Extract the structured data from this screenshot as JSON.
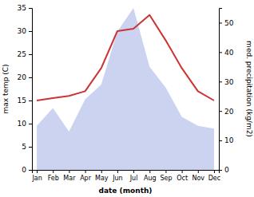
{
  "chart_data": {
    "type": "line",
    "categories": [
      "Jan",
      "Feb",
      "Mar",
      "Apr",
      "May",
      "Jun",
      "Jul",
      "Aug",
      "Sep",
      "Oct",
      "Nov",
      "Dec"
    ],
    "series": [
      {
        "type": "line",
        "color": "#cc3333",
        "values": [
          15,
          15.5,
          16,
          17,
          22,
          30,
          30.5,
          33.5,
          28,
          22,
          17,
          15
        ]
      },
      {
        "type": "area",
        "color": "#c5cef0",
        "axis": "y2",
        "values": [
          15,
          21,
          13,
          24,
          29,
          47,
          55,
          35,
          28,
          18,
          15,
          14
        ]
      }
    ],
    "xlabel": "date (month)",
    "ylabel": "max temp (C)",
    "y2label": "med. precipitation (kg/m2)",
    "ylim": [
      0,
      35
    ],
    "yticks": [
      0,
      5,
      10,
      15,
      20,
      25,
      30,
      35
    ],
    "y2lim": [
      0,
      55
    ],
    "y2ticks": [
      0,
      10,
      20,
      30,
      40,
      50
    ]
  }
}
